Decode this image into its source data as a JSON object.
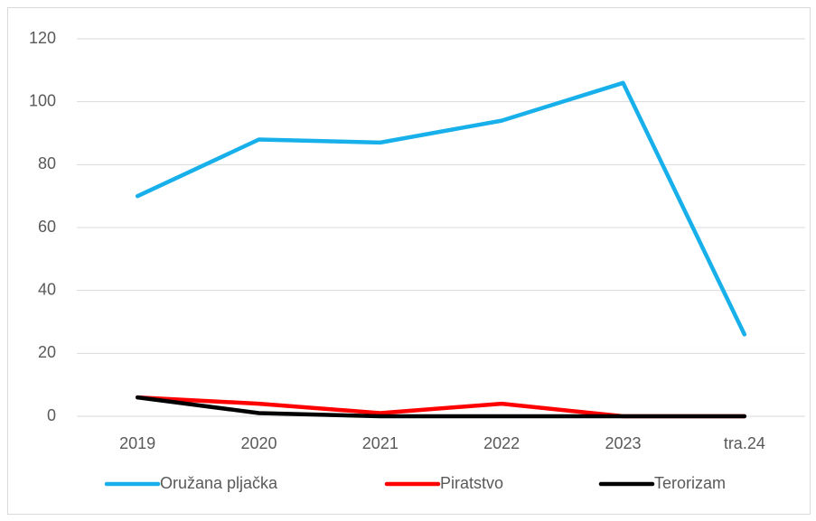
{
  "chart_data": {
    "type": "line",
    "categories": [
      "2019",
      "2020",
      "2021",
      "2022",
      "2023",
      "tra.24"
    ],
    "series": [
      {
        "name": "Oružana pljačka",
        "color": "#18b0ea",
        "values": [
          70,
          88,
          87,
          94,
          106,
          26
        ]
      },
      {
        "name": "Piratstvo",
        "color": "#ff0000",
        "values": [
          6,
          4,
          1,
          4,
          0,
          0
        ]
      },
      {
        "name": "Terorizam",
        "color": "#000000",
        "values": [
          6,
          1,
          0,
          0,
          0,
          0
        ]
      }
    ],
    "ylim": [
      0,
      120
    ],
    "yticks": [
      0,
      20,
      40,
      60,
      80,
      100,
      120
    ],
    "grid": true,
    "legend": "bottom"
  }
}
